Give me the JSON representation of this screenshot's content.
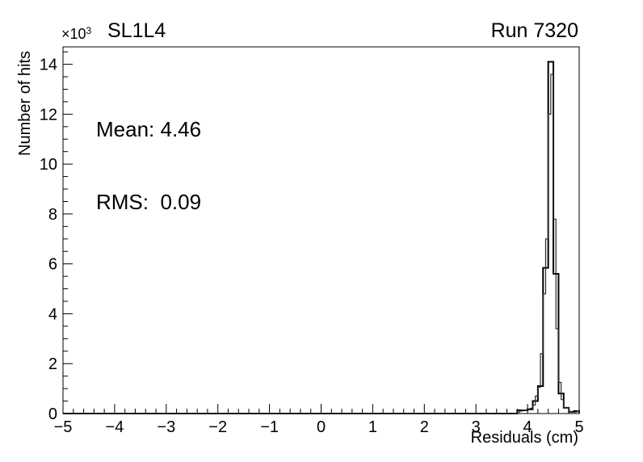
{
  "header": {
    "multiplier_base": "×10",
    "multiplier_exp": "3",
    "title": "SL1L4",
    "run_label": "Run 7320"
  },
  "stats": {
    "mean": "Mean: 4.46",
    "rms": "RMS:  0.09"
  },
  "axes": {
    "y_title": "Number of hits",
    "x_title": "Residuals (cm)"
  },
  "chart_data": {
    "type": "bar",
    "style": "step-histogram-outline",
    "title": "SL1L4",
    "corner_label": "Run 7320",
    "xlabel": "Residuals (cm)",
    "ylabel": "Number of hits",
    "y_multiplier": "×10³",
    "annotations": [
      "Mean: 4.46",
      "RMS:  0.09"
    ],
    "xlim": [
      -5,
      5
    ],
    "ylim": [
      0,
      14700
    ],
    "grid": false,
    "legend": "none",
    "background": "#ffffff",
    "frame_color": "#000000",
    "x_axis": {
      "major_step": 1,
      "minor_step": 0.2,
      "tick_labels": [
        "−5",
        "−4",
        "−3",
        "−2",
        "−1",
        "0",
        "1",
        "2",
        "3",
        "4",
        "5"
      ]
    },
    "y_axis": {
      "major_step": 2000,
      "minor_step": 500,
      "tick_labels": [
        "0",
        "2",
        "4",
        "6",
        "8",
        "10",
        "12",
        "14"
      ]
    },
    "series": [
      {
        "name": "histogram-main",
        "bin_width": 0.1,
        "first_bin_left_edge": 3.8,
        "values": [
          130,
          130,
          170,
          500,
          1100,
          5840,
          14100,
          5600,
          800,
          230,
          70,
          100
        ],
        "line_color": "#000000",
        "line_width": 2
      },
      {
        "name": "histogram-overlay",
        "bin_width": 0.05,
        "first_bin_left_edge": 3.8,
        "values": [
          60,
          100,
          140,
          130,
          150,
          210,
          340,
          700,
          1060,
          2400,
          4800,
          7000,
          12000,
          13600,
          7790,
          3400,
          1250,
          560,
          230,
          230,
          80,
          60,
          50,
          110
        ],
        "line_color": "#2b2b2b",
        "line_width": 1.2
      }
    ]
  }
}
